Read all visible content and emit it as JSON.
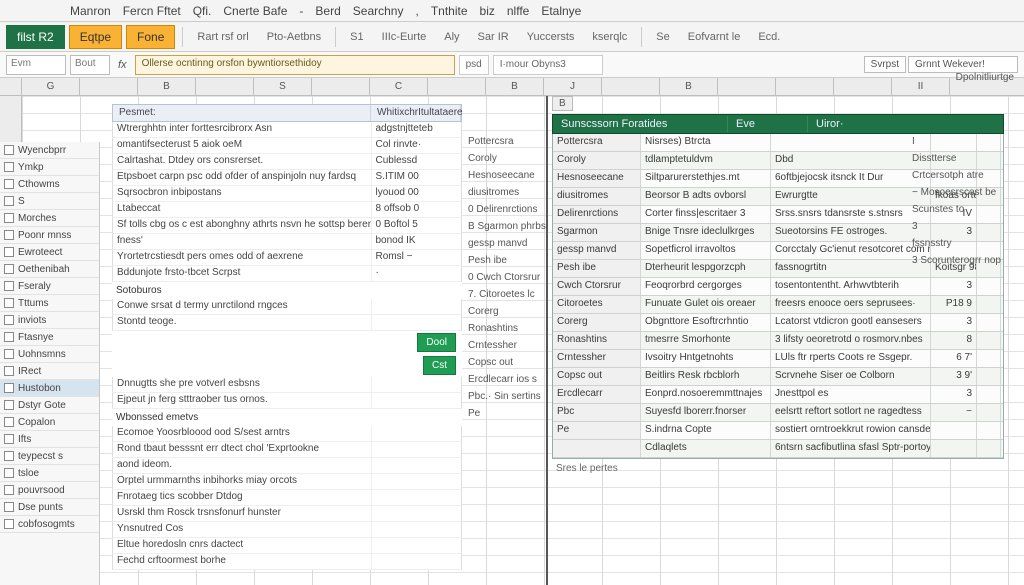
{
  "menubar": [
    "Manron",
    "Fercn Fftet",
    "Qfi.",
    "Cnerte Bafe",
    "-",
    "Berd",
    "Searchny",
    ",",
    "Tnthite",
    "biz",
    "nlffe",
    "Etalnye"
  ],
  "ribbon": {
    "file": "filst R2",
    "active1": "Eqtpe",
    "active2": "Fone",
    "labels": [
      "Rart rsf orl",
      "Pto-Aetbns",
      "S1",
      "IIIc-Eurte",
      "Aly",
      "Sar  IR",
      "Yuccersts",
      "kserqlc",
      "Se",
      "Eofvarnt le",
      "Ecd."
    ],
    "right": [
      "Evm",
      "Bout"
    ]
  },
  "formulaRow": {
    "namebox": "A1",
    "fx": "fx",
    "formula": "Ollerse ocntinng orsfon bywntiorsethidoy",
    "aux1": "psd",
    "aux2": "I·mour Obyns3",
    "rn1": "Svrpst",
    "rn2": "Grnnt Wekever!",
    "rn3": "Dpolnitliurtge"
  },
  "columns": [
    "",
    "G",
    "",
    "B",
    "",
    "S",
    "",
    "C",
    "",
    "B",
    "J",
    "",
    "B",
    "",
    "",
    "",
    "II"
  ],
  "leftPanel": {
    "items": [
      "Wyencbprr",
      "Ymkp",
      "Cthowms",
      "S",
      "Morches",
      "Poonr mnss",
      "Ewroteect",
      "Oethenibah",
      "Fseraly",
      "Tttums",
      "inviots",
      "Ftasnye",
      "Uohnsmns",
      "IRect",
      "Hustobon",
      "Dstyr Gote",
      "Copalon",
      "Ifts",
      "teypecst s",
      "tsloe",
      "pouvrsood",
      "Dse punts",
      "cobfosogmts"
    ],
    "selected": 14
  },
  "centerPanel": {
    "headA": "Pesmet:",
    "headB": "WhitixchrItultataere",
    "rows": [
      [
        "Wtrerghhtn inter forttesrcibrorx Asn",
        "adgstnjtteteb"
      ],
      [
        "omantifsecterust 5 aiok oeM",
        "Col rinvte·",
        "tecseres"
      ],
      [
        "Calrtashat. Dtdey ors consrerset.",
        "Cublessd",
        "5iiHv"
      ],
      [
        "Etpsboet carpn psc odd ofder of anspinjoln nuy fardsq",
        "S.ITIM 00"
      ],
      [
        "Sqrsocbron inbipostans",
        "lyouod 00"
      ],
      [
        "Ltabeccat",
        "8 offsob 0"
      ],
      [
        "Sf tolls cbg os c est abonghny athrts nsvn he sottsp beren",
        "0 Boftol 5"
      ],
      [
        "fness'",
        "bonod  IK"
      ],
      [
        "Yrortetrcstiesdt pers omes odd of aexrene",
        "Romsl −"
      ],
      [
        "Bddunjote frsto-tbcet        Scrpst",
        "·"
      ]
    ],
    "section2": "Sotoburos",
    "rows2": [
      [
        "Conwe srsat d termy unrctilond rngces",
        ""
      ],
      [
        "Stontd teoge.",
        ""
      ]
    ],
    "btn1": "Dool",
    "btn2": "Cst",
    "rows3": [
      [
        "Dnnugtts she pre votverl esbsns",
        ""
      ],
      [
        "Ejpeut jn ferg stttraober tus ornos.",
        ""
      ]
    ],
    "section3": "Wbonssed emetvs",
    "rows4": [
      [
        "Ecomoe Yoosrbloood ood S/sest arntrs",
        ""
      ],
      [
        "Rond tbaut  besssnt err dtect chol 'Exprtookne",
        ""
      ],
      [
        "aond ideom.",
        ""
      ],
      [
        "Orptel urmmarnths inbihorks miay orcots",
        ""
      ],
      [
        "Fnrotaeg tics scobber           Dtdog",
        ""
      ],
      [
        "Usrskl thm Rosck trsnsfonurf hunster",
        ""
      ],
      [
        "Ynsnutred                  Cos",
        ""
      ],
      [
        "Eltue horedosln cnrs dactect",
        ""
      ],
      [
        "Fechd crftoormest borhe",
        ""
      ]
    ],
    "midlabels": [
      "Pottercsra",
      "Coroly",
      "Hesnoseecane",
      "diusitromes",
      "0  Delirenrctions",
      "B  Sgarmon phrbststor",
      "gessp manvd",
      "Pesh ibe",
      "0  Cwch Ctorsrur",
      "7.  Citoroetes lc",
      "Corerg",
      "Ronashtins",
      "Crntessher",
      "Copsc out",
      "Ercdlecarr ios s",
      "Pbc.· Sin sertins",
      "Pe"
    ]
  },
  "rightPanel": {
    "colB": "B",
    "pretitle": "Wibtixttultatere",
    "title": [
      "Sunscssorn Foratides",
      "Eve",
      "Uiror·"
    ],
    "extra": [
      "I",
      "Disstterse",
      "Crtcersotph atre",
      "−  Mosoesrscost be",
      "Scunstes to",
      "3",
      "fssnsstry",
      "3    Scorunterogrr nop"
    ],
    "rows": [
      [
        "",
        "Nisrses) Btrcta",
        "",
        "",
        ""
      ],
      [
        "Coroly",
        "tdlamptetuldvm",
        "Dbd",
        "",
        ""
      ],
      [
        "",
        "Siltparurerstethjes.mt",
        "6oftbjejocsk itsnck It Dur",
        "",
        ""
      ],
      [
        "",
        "Beorsor B adts ovborsl",
        "Ewrurgtte",
        "fkoas ortes",
        ""
      ],
      [
        "",
        "Corter finss|escritaer 3",
        "Srss.snsrs tdansrste s.stnsrs",
        "IV",
        ""
      ],
      [
        "",
        "Bnige Tnsre ideclulkrges",
        "Sueotorsins FE ostroges.",
        "3",
        ""
      ],
      [
        "",
        "Sopetficrol irravoltos",
        "Corcctaly Gc'ienut resotcoret com rtontho",
        "",
        ""
      ],
      [
        "gessp",
        "Dterheurit lespgorzcph",
        "fassnogrtitn",
        "Koitsgr 98",
        ""
      ],
      [
        "Pesh",
        "Feoqrorbrd cergorges",
        "tosentontentht. Arhwvtbterih",
        "3",
        ""
      ],
      [
        "",
        "Funuate Gulet ois oreaer",
        "freesrs enooce oers seprusees·",
        "P18 9",
        ""
      ],
      [
        "",
        "Obgnttore Esoftrcrhntio",
        "Lcatorst vtdicron gootl eansesers",
        "3",
        ""
      ],
      [
        "Corerg",
        "tmesrre Smorhonte",
        "3 lifsty oeoretrotd o rosmorv.nbes",
        "8",
        ""
      ],
      [
        "",
        "Ivsoitry Hntgetnohts",
        "LUls ftr rperts Coots re Ssgepr.",
        "6  7'",
        ""
      ],
      [
        "",
        "Beitlirs    Resk rbcblorh",
        "Scrvnehe Siser oe Colborn",
        "3  9'",
        ""
      ],
      [
        "",
        "Eonprd.nosoeremmttnajes",
        "Jnesttpol es",
        "3",
        ""
      ],
      [
        "",
        "Suyesfd lborerr.fnorser",
        "eelsrtt reftort sotlort ne ragedtess",
        "−",
        ""
      ],
      [
        "",
        "S.indrna Copte",
        "sostiert orntroekkrut rowion cansdes 18",
        "",
        ""
      ],
      [
        "",
        "Cdlaqlets",
        "6ntsrn sacfibutlina sfasl Sptr-portoy",
        "",
        ""
      ]
    ],
    "leftKeys": [
      "Pottercsra",
      "Coroly",
      "Hesnoseecane",
      "diusitromes",
      "Delirenrctions",
      "Sgarmon",
      "gessp manvd",
      "Pesh ibe",
      "Cwch Ctorsrur",
      "Citoroetes",
      "Corerg",
      "Ronashtins",
      "Crntessher",
      "Copsc out",
      "Ercdlecarr",
      "Pbc",
      "Pe"
    ],
    "footer": "Sres le pertes"
  },
  "colors": {
    "green": "#1f7246",
    "greenBtn": "#1f9d55",
    "orange": "#f9b233",
    "headerBlue": "#eaeef5"
  }
}
